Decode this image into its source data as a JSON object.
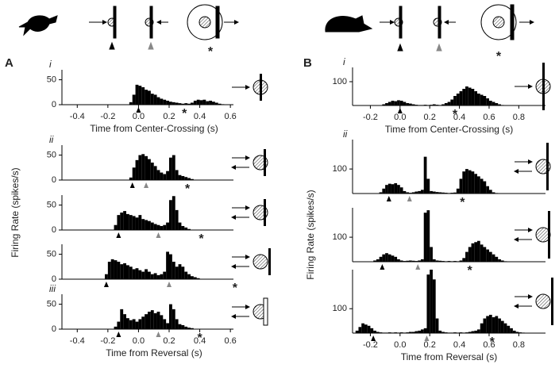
{
  "schematic": {
    "stars": [
      "*",
      "*"
    ]
  },
  "chart_data": [
    {
      "type": "histogram",
      "panel": "A",
      "sub": "i",
      "color": "#000000",
      "xlim": [
        -0.5,
        0.62
      ],
      "ylim": [
        0,
        70
      ],
      "yticks": [
        0,
        50
      ],
      "xticks": [
        -0.4,
        -0.2,
        {
          "value": 0,
          "label": "0.0"
        },
        0.2,
        0.4,
        0.6
      ],
      "x_label": "Time from Center-Crossing (s)",
      "bins": [
        -0.06,
        -0.04,
        -0.02,
        0,
        0.02,
        0.04,
        0.06,
        0.08,
        0.1,
        0.12,
        0.14,
        0.16,
        0.18,
        0.2,
        0.22,
        0.24,
        0.26,
        0.28,
        0.3,
        0.32,
        0.34,
        0.36,
        0.38,
        0.4,
        0.42,
        0.44,
        0.46,
        0.48,
        0.5,
        0.52,
        0.54,
        0.56
      ],
      "values": [
        5,
        20,
        40,
        38,
        35,
        30,
        28,
        22,
        20,
        15,
        12,
        10,
        8,
        6,
        5,
        4,
        3,
        2,
        3,
        2,
        4,
        8,
        10,
        9,
        10,
        7,
        8,
        6,
        4,
        2,
        1
      ],
      "markers": {
        "black": 0,
        "star": 0.3
      },
      "star_label": "*"
    },
    {
      "type": "histogram",
      "sub": "ii",
      "color": "#000000",
      "xlim": [
        -0.5,
        0.62
      ],
      "ylim": [
        0,
        70
      ],
      "yticks": [
        0,
        50
      ],
      "bins": [
        -0.06,
        -0.04,
        -0.02,
        0,
        0.02,
        0.04,
        0.06,
        0.08,
        0.1,
        0.12,
        0.14,
        0.16,
        0.18,
        0.2,
        0.22,
        0.24,
        0.26,
        0.28,
        0.3,
        0.32,
        0.34,
        0.36
      ],
      "values": [
        5,
        25,
        40,
        50,
        52,
        48,
        42,
        35,
        28,
        20,
        15,
        12,
        18,
        45,
        50,
        20,
        10,
        8,
        6,
        4,
        2
      ],
      "markers": {
        "black": -0.04,
        "gray": 0.05,
        "star": 0.32
      },
      "star_label": "*"
    },
    {
      "type": "histogram",
      "color": "#000000",
      "xlim": [
        -0.5,
        0.62
      ],
      "ylim": [
        0,
        70
      ],
      "yticks": [
        0,
        50
      ],
      "y_label": "Firing Rate (spikes/s)",
      "bins": [
        -0.16,
        -0.14,
        -0.12,
        -0.1,
        -0.08,
        -0.06,
        -0.04,
        -0.02,
        0,
        0.02,
        0.04,
        0.06,
        0.08,
        0.1,
        0.12,
        0.14,
        0.16,
        0.18,
        0.2,
        0.22,
        0.24,
        0.26,
        0.28,
        0.3,
        0.32,
        0.34
      ],
      "values": [
        10,
        30,
        35,
        38,
        32,
        30,
        28,
        25,
        30,
        22,
        20,
        18,
        15,
        12,
        10,
        8,
        10,
        15,
        60,
        68,
        40,
        15,
        8,
        5,
        2
      ],
      "markers": {
        "black": -0.13,
        "gray": 0.13,
        "star": 0.41
      },
      "star_label": "*"
    },
    {
      "type": "histogram",
      "color": "#000000",
      "xlim": [
        -0.5,
        0.62
      ],
      "ylim": [
        0,
        70
      ],
      "yticks": [
        0,
        50
      ],
      "bins": [
        -0.22,
        -0.2,
        -0.18,
        -0.16,
        -0.14,
        -0.12,
        -0.1,
        -0.08,
        -0.06,
        -0.04,
        -0.02,
        0,
        0.02,
        0.04,
        0.06,
        0.08,
        0.1,
        0.12,
        0.14,
        0.16,
        0.18,
        0.2,
        0.22,
        0.24,
        0.26,
        0.28,
        0.3,
        0.32,
        0.34,
        0.36,
        0.38,
        0.4
      ],
      "values": [
        10,
        35,
        40,
        38,
        35,
        30,
        32,
        28,
        25,
        20,
        22,
        18,
        15,
        20,
        15,
        10,
        12,
        8,
        10,
        15,
        55,
        50,
        35,
        25,
        30,
        25,
        15,
        10,
        6,
        4,
        2
      ],
      "markers": {
        "black": -0.21,
        "gray": 0.2,
        "star": 0.63
      },
      "star_label": "*"
    },
    {
      "type": "histogram",
      "sub": "iii",
      "color": "#000000",
      "xlim": [
        -0.5,
        0.62
      ],
      "ylim": [
        0,
        70
      ],
      "yticks": [
        0,
        50
      ],
      "xticks": [
        -0.4,
        -0.2,
        {
          "value": 0,
          "label": "0.0"
        },
        0.2,
        0.4,
        0.6
      ],
      "x_label": "Time from Reversal (s)",
      "bins": [
        -0.16,
        -0.14,
        -0.12,
        -0.1,
        -0.08,
        -0.06,
        -0.04,
        -0.02,
        0,
        0.02,
        0.04,
        0.06,
        0.08,
        0.1,
        0.12,
        0.14,
        0.16,
        0.18,
        0.2,
        0.22,
        0.24,
        0.26,
        0.28,
        0.3,
        0.32,
        0.34,
        0.36
      ],
      "values": [
        5,
        15,
        40,
        30,
        22,
        18,
        20,
        15,
        20,
        25,
        30,
        35,
        38,
        32,
        35,
        28,
        20,
        12,
        50,
        40,
        20,
        10,
        8,
        5,
        3,
        2
      ],
      "markers": {
        "black": -0.13,
        "gray": 0.13,
        "star": 0.4
      },
      "star_label": "*"
    },
    {
      "type": "histogram",
      "panel": "B",
      "sub": "i",
      "color": "#000000",
      "xlim": [
        -0.32,
        0.98
      ],
      "ylim": [
        0,
        160
      ],
      "yticks": [
        100
      ],
      "xticks": [
        -0.2,
        {
          "value": 0,
          "label": "0.0"
        },
        0.2,
        0.4,
        0.6,
        0.8
      ],
      "x_label": "Time from Center-Crossing (s)",
      "bins": [
        -0.12,
        -0.1,
        -0.08,
        -0.06,
        -0.04,
        -0.02,
        0,
        0.02,
        0.04,
        0.06,
        0.08,
        0.1,
        0.12,
        0.14,
        0.16,
        0.18,
        0.2,
        0.22,
        0.24,
        0.26,
        0.28,
        0.3,
        0.32,
        0.34,
        0.36,
        0.38,
        0.4,
        0.42,
        0.44,
        0.46,
        0.48,
        0.5,
        0.52,
        0.54,
        0.56,
        0.58,
        0.6,
        0.62,
        0.64,
        0.66,
        0.68,
        0.7
      ],
      "values": [
        5,
        10,
        15,
        20,
        18,
        22,
        20,
        15,
        10,
        8,
        5,
        3,
        2,
        2,
        3,
        2,
        3,
        5,
        3,
        2,
        5,
        10,
        15,
        25,
        40,
        50,
        60,
        70,
        80,
        75,
        70,
        60,
        50,
        45,
        40,
        30,
        20,
        15,
        10,
        5,
        2
      ],
      "markers": {
        "black": 0,
        "star": 0.37
      },
      "star_label": "*"
    },
    {
      "type": "histogram",
      "sub": "ii",
      "color": "#000000",
      "xlim": [
        -0.32,
        0.98
      ],
      "ylim": [
        0,
        220
      ],
      "yticks": [
        100
      ],
      "bins": [
        -0.14,
        -0.12,
        -0.1,
        -0.08,
        -0.06,
        -0.04,
        -0.02,
        0,
        0.02,
        0.04,
        0.06,
        0.08,
        0.1,
        0.12,
        0.14,
        0.16,
        0.18,
        0.2,
        0.22,
        0.24,
        0.26,
        0.28,
        0.3,
        0.32,
        0.34,
        0.36,
        0.38,
        0.4,
        0.42,
        0.44,
        0.46,
        0.48,
        0.5,
        0.52,
        0.54,
        0.56,
        0.58,
        0.6,
        0.62,
        0.64,
        0.66
      ],
      "values": [
        5,
        20,
        35,
        40,
        38,
        42,
        35,
        25,
        10,
        5,
        3,
        5,
        8,
        10,
        15,
        150,
        60,
        10,
        8,
        6,
        5,
        4,
        3,
        2,
        3,
        4,
        20,
        60,
        90,
        100,
        95,
        90,
        80,
        70,
        60,
        50,
        30,
        15,
        5,
        2
      ],
      "markers": {
        "black": -0.075,
        "gray": 0.064,
        "star": 0.42
      },
      "star_label": "*"
    },
    {
      "type": "histogram",
      "color": "#000000",
      "xlim": [
        -0.32,
        0.98
      ],
      "ylim": [
        0,
        220
      ],
      "yticks": [
        100
      ],
      "y_label": "Firing Rate (spikes/s)",
      "bins": [
        -0.18,
        -0.16,
        -0.14,
        -0.12,
        -0.1,
        -0.08,
        -0.06,
        -0.04,
        -0.02,
        0,
        0.02,
        0.04,
        0.06,
        0.08,
        0.1,
        0.12,
        0.14,
        0.16,
        0.18,
        0.2,
        0.22,
        0.24,
        0.26,
        0.28,
        0.3,
        0.32,
        0.34,
        0.36,
        0.38,
        0.4,
        0.42,
        0.44,
        0.46,
        0.48,
        0.5,
        0.52,
        0.54,
        0.56,
        0.58,
        0.6,
        0.62,
        0.64,
        0.66,
        0.68,
        0.7,
        0.72
      ],
      "values": [
        5,
        10,
        20,
        30,
        35,
        30,
        25,
        20,
        10,
        5,
        3,
        4,
        5,
        4,
        3,
        5,
        10,
        200,
        210,
        60,
        10,
        5,
        4,
        3,
        2,
        3,
        2,
        3,
        2,
        5,
        15,
        40,
        60,
        75,
        80,
        85,
        70,
        60,
        50,
        40,
        30,
        20,
        10,
        5,
        2
      ],
      "markers": {
        "black": -0.12,
        "gray": 0.12,
        "star": 0.47
      },
      "star_label": "*"
    },
    {
      "type": "histogram",
      "color": "#000000",
      "xlim": [
        -0.32,
        0.98
      ],
      "ylim": [
        0,
        260
      ],
      "yticks": [
        100
      ],
      "xticks": [
        -0.2,
        {
          "value": 0,
          "label": "0.0"
        },
        0.2,
        0.4,
        0.6,
        0.8
      ],
      "x_label": "Time from Reversal (s)",
      "bins": [
        -0.3,
        -0.28,
        -0.26,
        -0.24,
        -0.22,
        -0.2,
        -0.18,
        -0.16,
        -0.14,
        -0.12,
        -0.1,
        -0.08,
        -0.06,
        -0.04,
        -0.02,
        0,
        0.02,
        0.04,
        0.06,
        0.08,
        0.1,
        0.12,
        0.14,
        0.16,
        0.18,
        0.2,
        0.22,
        0.24,
        0.26,
        0.28,
        0.3,
        0.32,
        0.34,
        0.36,
        0.38,
        0.4,
        0.42,
        0.44,
        0.46,
        0.48,
        0.5,
        0.52,
        0.54,
        0.56,
        0.58,
        0.6,
        0.62,
        0.64,
        0.66,
        0.68,
        0.7,
        0.72,
        0.74,
        0.76,
        0.78,
        0.8,
        0.82,
        0.84,
        0.86,
        0.88,
        0.9
      ],
      "values": [
        10,
        25,
        40,
        35,
        30,
        20,
        10,
        5,
        3,
        2,
        2,
        3,
        2,
        3,
        2,
        3,
        2,
        3,
        5,
        5,
        8,
        10,
        15,
        20,
        240,
        260,
        220,
        60,
        10,
        5,
        3,
        2,
        2,
        3,
        2,
        3,
        2,
        3,
        5,
        8,
        10,
        15,
        40,
        60,
        70,
        75,
        65,
        70,
        60,
        50,
        40,
        30,
        20,
        10,
        5,
        3,
        2,
        1,
        1,
        1
      ],
      "markers": {
        "black": -0.18,
        "gray": 0.18,
        "star": 0.62
      },
      "star_label": "*"
    }
  ]
}
